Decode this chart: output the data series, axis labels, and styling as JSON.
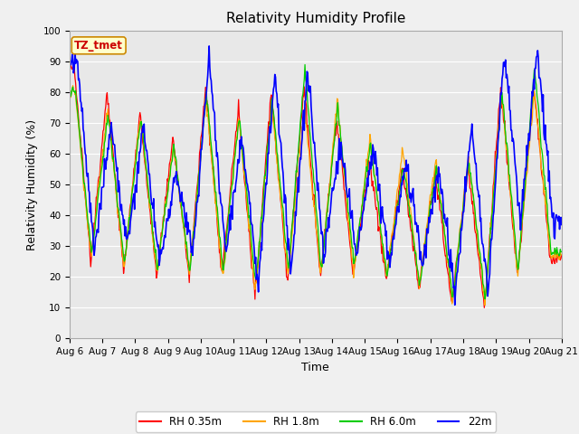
{
  "title": "Relativity Humidity Profile",
  "xlabel": "Time",
  "ylabel": "Relativity Humidity (%)",
  "ylim": [
    0,
    100
  ],
  "start_day": 6,
  "end_day": 21,
  "fig_bg_color": "#f0f0f0",
  "plot_bg_color": "#e8e8e8",
  "annotation_text": "TZ_tmet",
  "annotation_bg": "#ffffcc",
  "annotation_border": "#cc8800",
  "annotation_text_color": "#cc0000",
  "line_colors": {
    "rh035": "#ff0000",
    "rh18": "#ffa500",
    "rh60": "#00cc00",
    "rh22": "#0000ff"
  },
  "legend_labels": [
    "RH 0.35m",
    "RH 1.8m",
    "RH 6.0m",
    "22m"
  ],
  "tick_fontsize": 7.5,
  "label_fontsize": 9,
  "title_fontsize": 11,
  "grid_color": "#ffffff",
  "spine_color": "#aaaaaa"
}
